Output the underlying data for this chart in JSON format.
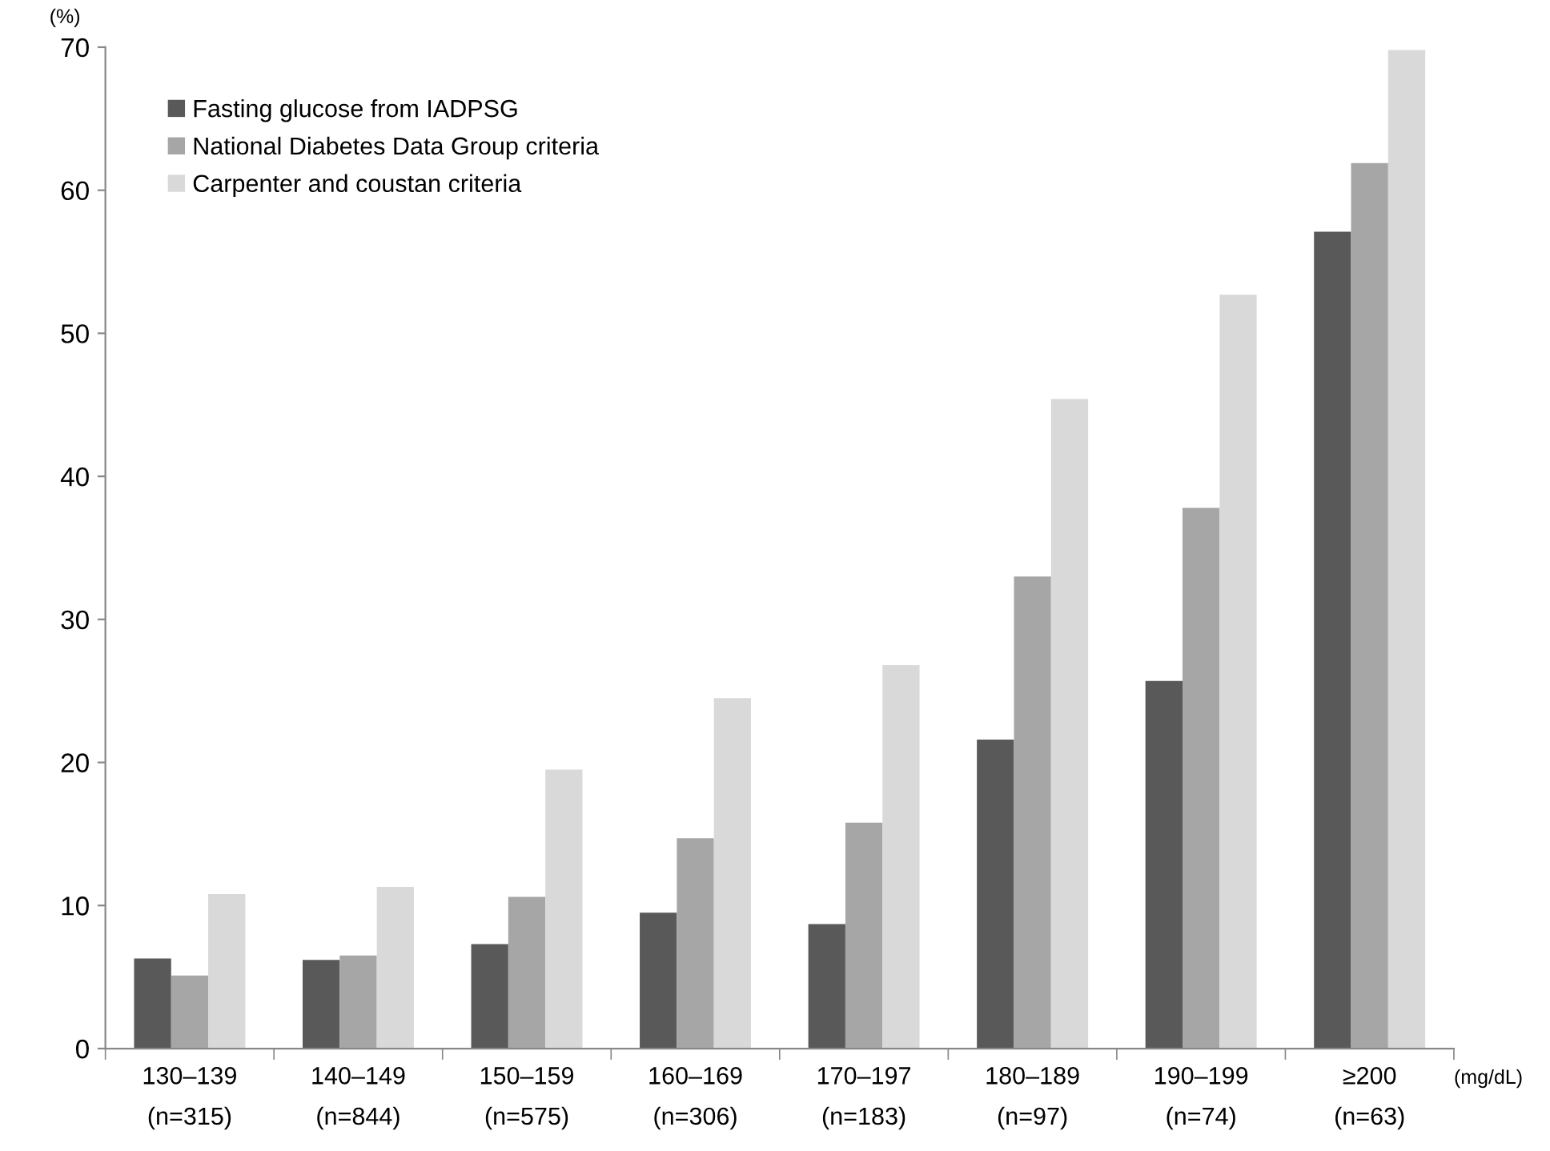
{
  "chart_data": {
    "type": "bar",
    "ylabel": "(%)",
    "xlabel": "(mg/dL)",
    "categories": [
      "130–139\n(n=315)",
      "140–149\n(n=844)",
      "150–159\n(n=575)",
      "160–169\n(n=306)",
      "170–197\n(n=183)",
      "180–189\n(n=97)",
      "190–199\n(n=74)",
      "≥200\n(n=63)"
    ],
    "series": [
      {
        "name": "Fasting glucose from IADPSG",
        "color": "#595959",
        "values": [
          6.3,
          6.2,
          7.3,
          9.5,
          8.7,
          21.6,
          25.7,
          57.1
        ]
      },
      {
        "name": "National Diabetes Data Group criteria",
        "color": "#a6a6a6",
        "values": [
          5.1,
          6.5,
          10.6,
          14.7,
          15.8,
          33.0,
          37.8,
          61.9
        ]
      },
      {
        "name": "Carpenter and coustan criteria",
        "color": "#d9d9d9",
        "values": [
          10.8,
          11.3,
          19.5,
          24.5,
          26.8,
          45.4,
          52.7,
          69.8
        ]
      }
    ],
    "ylim": [
      0,
      70
    ],
    "yticks": [
      0,
      10,
      20,
      30,
      40,
      50,
      60,
      70
    ],
    "grid": false,
    "legend": "top left"
  }
}
